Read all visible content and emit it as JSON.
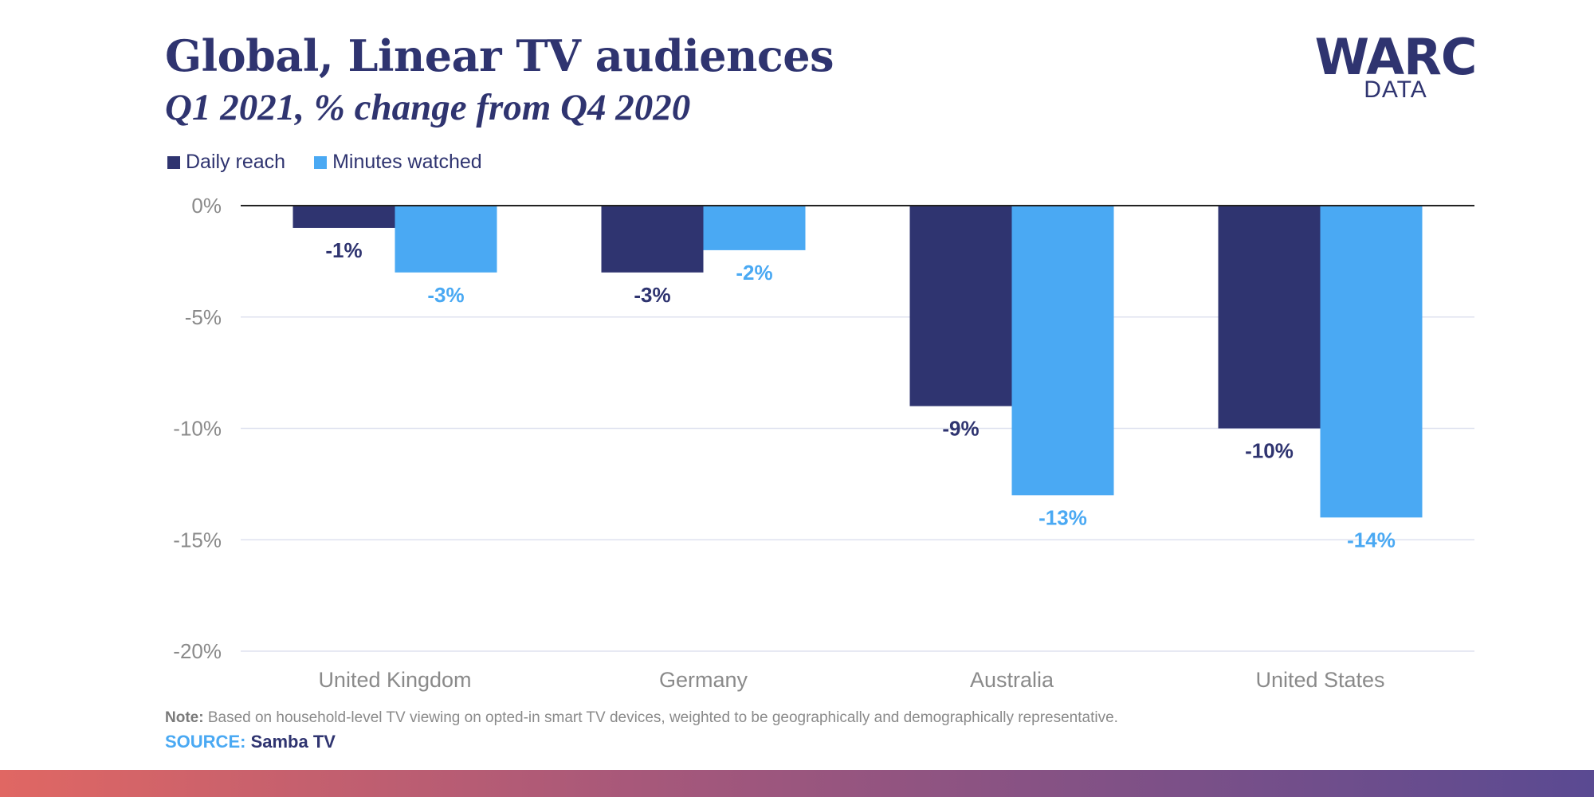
{
  "header": {
    "title": "Global, Linear TV audiences",
    "subtitle": "Q1 2021, % change from Q4 2020"
  },
  "logo": {
    "main": "WARC",
    "sub": "DATA"
  },
  "footer": {
    "note_label": "Note:",
    "note_text": " Based on household-level TV viewing on opted-in smart TV devices, weighted to be geographically and demographically representative.",
    "source_label": "SOURCE:",
    "source_value": " Samba TV"
  },
  "colors": {
    "daily_reach": "#2f3470",
    "minutes_watched": "#4aa9f3",
    "text_dark": "#2f3470",
    "grid": "#dfe2ef",
    "axis_text": "#8a8a8a"
  },
  "chart_data": {
    "type": "bar",
    "title": "Global, Linear TV audiences",
    "subtitle": "Q1 2021, % change from Q4 2020",
    "categories": [
      "United Kingdom",
      "Germany",
      "Australia",
      "United States"
    ],
    "series": [
      {
        "name": "Daily reach",
        "values": [
          -1,
          -3,
          -9,
          -10
        ],
        "labels": [
          "-1%",
          "-3%",
          "-9%",
          "-10%"
        ]
      },
      {
        "name": "Minutes watched",
        "values": [
          -3,
          -2,
          -13,
          -14
        ],
        "labels": [
          "-3%",
          "-2%",
          "-13%",
          "-14%"
        ]
      }
    ],
    "ylim": [
      -20,
      0
    ],
    "yticks": [
      0,
      -5,
      -10,
      -15,
      -20
    ],
    "ytick_labels": [
      "0%",
      "-5%",
      "-10%",
      "-15%",
      "-20%"
    ],
    "xlabel": "",
    "ylabel": "",
    "grid": true,
    "legend_position": "top-left"
  }
}
